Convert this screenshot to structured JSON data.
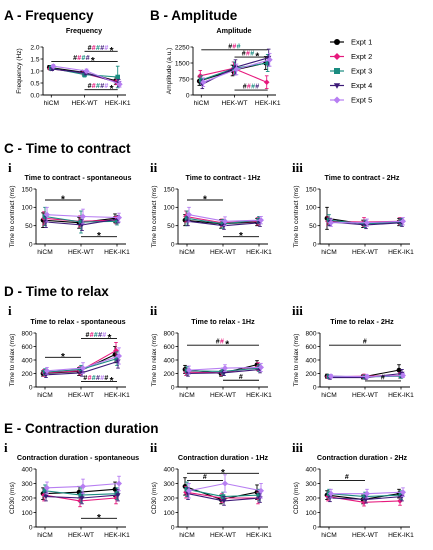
{
  "colors": [
    "#000000",
    "#e6197d",
    "#1a8c80",
    "#3d1a78",
    "#b77ef2"
  ],
  "legend": [
    "Expt 1",
    "Expt 2",
    "Expt 3",
    "Expt 4",
    "Expt 5"
  ],
  "sections": {
    "A": "A - Frequency",
    "B": "B - Amplitude",
    "C": "C - Time to contract",
    "D": "D - Time to relax",
    "E": "E - Contraction duration"
  },
  "chart_data": [
    {
      "id": "A",
      "type": "line",
      "title": "Frequency",
      "ylabel": "Frequency (Hz)",
      "categories": [
        "hiCM",
        "HEK-WT",
        "HEK-IK1"
      ],
      "ylim": [
        0,
        2
      ],
      "yticks": [
        "0.0",
        "0.5",
        "1.0",
        "1.5",
        "2.0"
      ],
      "series": [
        {
          "values": [
            1.15,
            0.95,
            0.6
          ],
          "err": [
            0.08,
            0.07,
            0.15
          ]
        },
        {
          "values": [
            1.1,
            0.9,
            0.55
          ],
          "err": [
            0.07,
            0.07,
            0.12
          ]
        },
        {
          "values": [
            1.12,
            0.85,
            0.75
          ],
          "err": [
            0.1,
            0.1,
            0.45
          ]
        },
        {
          "values": [
            1.08,
            0.92,
            0.5
          ],
          "err": [
            0.06,
            0.08,
            0.15
          ]
        },
        {
          "values": [
            1.2,
            1.0,
            0.45
          ],
          "err": [
            0.07,
            0.08,
            0.12
          ]
        }
      ],
      "annotations": [
        {
          "x": 1.5,
          "y": 1.82,
          "text": "#####",
          "star": "*"
        },
        {
          "x": 1.0,
          "y": 1.4,
          "text": "####",
          "star": "*"
        },
        {
          "x": 2.3,
          "y": 0.22,
          "text": "#####",
          "star": "*"
        }
      ]
    },
    {
      "id": "B",
      "type": "line",
      "title": "Amplitude",
      "ylabel": "Amplitude (a.u.)",
      "categories": [
        "hiCM",
        "HEK-WT",
        "HEK-IK1"
      ],
      "ylim": [
        0,
        2250
      ],
      "yticks": [
        "0",
        "750",
        "1500",
        "2250"
      ],
      "series": [
        {
          "values": [
            650,
            1150,
            1500
          ],
          "err": [
            200,
            250,
            300
          ]
        },
        {
          "values": [
            900,
            1250,
            600
          ],
          "err": [
            250,
            300,
            300
          ]
        },
        {
          "values": [
            700,
            1250,
            1500
          ],
          "err": [
            200,
            300,
            400
          ]
        },
        {
          "values": [
            500,
            1300,
            1750
          ],
          "err": [
            200,
            350,
            400
          ]
        },
        {
          "values": [
            600,
            1200,
            1650
          ],
          "err": [
            200,
            250,
            300
          ]
        }
      ],
      "annotations": [
        {
          "x": 1.0,
          "y": 2120,
          "text": "###",
          "star": ""
        },
        {
          "x": 1.5,
          "y": 1780,
          "text": "###",
          "star": "*"
        },
        {
          "x": 2.3,
          "y": 230,
          "text": "####",
          "star": ""
        }
      ]
    },
    {
      "id": "Ci",
      "type": "line",
      "title": "Time to contract - spontaneous",
      "ylabel": "Time to contract (ms)",
      "categories": [
        "hiCM",
        "HEK-WT",
        "HEK-IK1"
      ],
      "ylim": [
        0,
        150
      ],
      "yticks": [
        "0",
        "50",
        "100",
        "150"
      ],
      "series": [
        {
          "values": [
            65,
            58,
            70
          ],
          "err": [
            20,
            15,
            12
          ]
        },
        {
          "values": [
            70,
            62,
            65
          ],
          "err": [
            18,
            15,
            10
          ]
        },
        {
          "values": [
            75,
            60,
            62
          ],
          "err": [
            25,
            30,
            10
          ]
        },
        {
          "values": [
            60,
            52,
            68
          ],
          "err": [
            15,
            15,
            10
          ]
        },
        {
          "values": [
            80,
            75,
            72
          ],
          "err": [
            20,
            20,
            12
          ]
        }
      ],
      "annotations": [
        {
          "x": 0.5,
          "y": 120,
          "text": "",
          "star": "*"
        },
        {
          "x": 1.5,
          "y": 20,
          "text": "",
          "star": "*"
        }
      ]
    },
    {
      "id": "Cii",
      "type": "line",
      "title": "Time to contract - 1Hz",
      "ylabel": "Time to contract (ms)",
      "categories": [
        "hiCM",
        "HEK-WT",
        "HEK-IK1"
      ],
      "ylim": [
        0,
        150
      ],
      "yticks": [
        "0",
        "50",
        "100",
        "150"
      ],
      "series": [
        {
          "values": [
            65,
            55,
            60
          ],
          "err": [
            15,
            12,
            10
          ]
        },
        {
          "values": [
            75,
            58,
            62
          ],
          "err": [
            15,
            10,
            10
          ]
        },
        {
          "values": [
            70,
            55,
            65
          ],
          "err": [
            20,
            12,
            10
          ]
        },
        {
          "values": [
            62,
            50,
            58
          ],
          "err": [
            12,
            10,
            10
          ]
        },
        {
          "values": [
            80,
            62,
            65
          ],
          "err": [
            20,
            12,
            10
          ]
        }
      ],
      "annotations": [
        {
          "x": 0.5,
          "y": 120,
          "text": "",
          "star": "*"
        },
        {
          "x": 1.5,
          "y": 20,
          "text": "",
          "star": "*"
        }
      ]
    },
    {
      "id": "Ciii",
      "type": "line",
      "title": "Time to contract - 2Hz",
      "ylabel": "Time to contract (ms)",
      "categories": [
        "hiCM",
        "HEK-WT",
        "HEK-IK1"
      ],
      "ylim": [
        0,
        150
      ],
      "yticks": [
        "0",
        "50",
        "100",
        "150"
      ],
      "series": [
        {
          "values": [
            70,
            55,
            60
          ],
          "err": [
            30,
            10,
            10
          ]
        },
        {
          "values": [
            62,
            60,
            62
          ],
          "err": [
            12,
            12,
            10
          ]
        },
        {
          "values": [
            65,
            55,
            60
          ],
          "err": [
            15,
            10,
            10
          ]
        },
        {
          "values": [
            60,
            52,
            58
          ],
          "err": [
            10,
            10,
            10
          ]
        },
        {
          "values": [
            58,
            58,
            62
          ],
          "err": [
            10,
            10,
            10
          ]
        }
      ],
      "annotations": []
    },
    {
      "id": "Di",
      "type": "line",
      "title": "Time to relax - spontaneous",
      "ylabel": "Time to relax (ms)",
      "categories": [
        "hiCM",
        "HEK-WT",
        "HEK-IK1"
      ],
      "ylim": [
        0,
        800
      ],
      "yticks": [
        "0",
        "200",
        "400",
        "600",
        "800"
      ],
      "series": [
        {
          "values": [
            200,
            230,
            480
          ],
          "err": [
            40,
            60,
            120
          ]
        },
        {
          "values": [
            210,
            240,
            540
          ],
          "err": [
            50,
            60,
            120
          ]
        },
        {
          "values": [
            220,
            260,
            420
          ],
          "err": [
            50,
            60,
            100
          ]
        },
        {
          "values": [
            180,
            210,
            380
          ],
          "err": [
            40,
            50,
            100
          ]
        },
        {
          "values": [
            240,
            280,
            460
          ],
          "err": [
            50,
            80,
            120
          ]
        }
      ],
      "annotations": [
        {
          "x": 1.5,
          "y": 720,
          "text": "#####",
          "star": "*"
        },
        {
          "x": 0.5,
          "y": 440,
          "text": "",
          "star": "*"
        },
        {
          "x": 2.3,
          "y": 80,
          "text": "######",
          "star": "*"
        }
      ]
    },
    {
      "id": "Dii",
      "type": "line",
      "title": "Time to relax - 1Hz",
      "ylabel": "Time to relax (ms)",
      "categories": [
        "hiCM",
        "HEK-WT",
        "HEK-IK1"
      ],
      "ylim": [
        0,
        800
      ],
      "yticks": [
        "0",
        "200",
        "400",
        "600",
        "800"
      ],
      "series": [
        {
          "values": [
            260,
            200,
            330
          ],
          "err": [
            60,
            40,
            60
          ]
        },
        {
          "values": [
            220,
            210,
            300
          ],
          "err": [
            50,
            40,
            60
          ]
        },
        {
          "values": [
            240,
            230,
            280
          ],
          "err": [
            60,
            50,
            50
          ]
        },
        {
          "values": [
            200,
            210,
            260
          ],
          "err": [
            40,
            40,
            50
          ]
        },
        {
          "values": [
            250,
            280,
            290
          ],
          "err": [
            60,
            50,
            60
          ]
        }
      ],
      "annotations": [
        {
          "x": 1.0,
          "y": 620,
          "text": "##",
          "star": "*"
        },
        {
          "x": 1.5,
          "y": 100,
          "text": "#",
          "star": ""
        }
      ]
    },
    {
      "id": "Diii",
      "type": "line",
      "title": "Time to relax - 2Hz",
      "ylabel": "Time to relax (ms)",
      "categories": [
        "hiCM",
        "HEK-WT",
        "HEK-IK1"
      ],
      "ylim": [
        0,
        800
      ],
      "yticks": [
        "0",
        "200",
        "400",
        "600",
        "800"
      ],
      "series": [
        {
          "values": [
            160,
            150,
            250
          ],
          "err": [
            30,
            30,
            80
          ]
        },
        {
          "values": [
            150,
            160,
            170
          ],
          "err": [
            25,
            30,
            40
          ]
        },
        {
          "values": [
            155,
            150,
            160
          ],
          "err": [
            25,
            25,
            30
          ]
        },
        {
          "values": [
            140,
            140,
            200
          ],
          "err": [
            25,
            25,
            60
          ]
        },
        {
          "values": [
            160,
            155,
            170
          ],
          "err": [
            25,
            25,
            30
          ]
        }
      ],
      "annotations": [
        {
          "x": 1.0,
          "y": 620,
          "text": "#",
          "star": ""
        },
        {
          "x": 1.5,
          "y": 90,
          "text": "#",
          "star": ""
        }
      ]
    },
    {
      "id": "Ei",
      "type": "line",
      "title": "Contraction duration - spontaneous",
      "ylabel": "CD30 (ms)",
      "categories": [
        "hiCM",
        "HEK-WT",
        "HEK-IK1"
      ],
      "ylim": [
        0,
        400
      ],
      "yticks": [
        "0",
        "100",
        "200",
        "300",
        "400"
      ],
      "series": [
        {
          "values": [
            230,
            240,
            260
          ],
          "err": [
            40,
            40,
            50
          ]
        },
        {
          "values": [
            220,
            180,
            200
          ],
          "err": [
            40,
            40,
            40
          ]
        },
        {
          "values": [
            250,
            220,
            230
          ],
          "err": [
            40,
            50,
            40
          ]
        },
        {
          "values": [
            210,
            200,
            220
          ],
          "err": [
            30,
            40,
            40
          ]
        },
        {
          "values": [
            270,
            280,
            300
          ],
          "err": [
            40,
            50,
            50
          ]
        }
      ],
      "annotations": [
        {
          "x": 1.5,
          "y": 60,
          "text": "",
          "star": "*"
        }
      ]
    },
    {
      "id": "Eii",
      "type": "line",
      "title": "Contraction duration - 1Hz",
      "ylabel": "CD30 (ms)",
      "categories": [
        "hiCM",
        "HEK-WT",
        "HEK-IK1"
      ],
      "ylim": [
        0,
        400
      ],
      "yticks": [
        "0",
        "100",
        "200",
        "300",
        "400"
      ],
      "series": [
        {
          "values": [
            280,
            190,
            240
          ],
          "err": [
            60,
            30,
            50
          ]
        },
        {
          "values": [
            240,
            200,
            200
          ],
          "err": [
            40,
            30,
            40
          ]
        },
        {
          "values": [
            260,
            210,
            220
          ],
          "err": [
            50,
            30,
            40
          ]
        },
        {
          "values": [
            230,
            180,
            200
          ],
          "err": [
            40,
            30,
            30
          ]
        },
        {
          "values": [
            250,
            300,
            250
          ],
          "err": [
            50,
            60,
            50
          ]
        }
      ],
      "annotations": [
        {
          "x": 1.0,
          "y": 370,
          "text": "",
          "star": "*"
        },
        {
          "x": 0.5,
          "y": 320,
          "text": "#",
          "star": ""
        }
      ]
    },
    {
      "id": "Eiii",
      "type": "line",
      "title": "Contraction duration - 2Hz",
      "ylabel": "CD30 (ms)",
      "categories": [
        "hiCM",
        "HEK-WT",
        "HEK-IK1"
      ],
      "ylim": [
        0,
        400
      ],
      "yticks": [
        "0",
        "100",
        "200",
        "300",
        "400"
      ],
      "series": [
        {
          "values": [
            220,
            190,
            230
          ],
          "err": [
            30,
            30,
            30
          ]
        },
        {
          "values": [
            210,
            170,
            180
          ],
          "err": [
            30,
            25,
            30
          ]
        },
        {
          "values": [
            230,
            210,
            220
          ],
          "err": [
            30,
            30,
            30
          ]
        },
        {
          "values": [
            200,
            190,
            210
          ],
          "err": [
            25,
            25,
            30
          ]
        },
        {
          "values": [
            230,
            230,
            240
          ],
          "err": [
            30,
            30,
            30
          ]
        }
      ],
      "annotations": [
        {
          "x": 0.5,
          "y": 320,
          "text": "#",
          "star": ""
        }
      ]
    }
  ]
}
